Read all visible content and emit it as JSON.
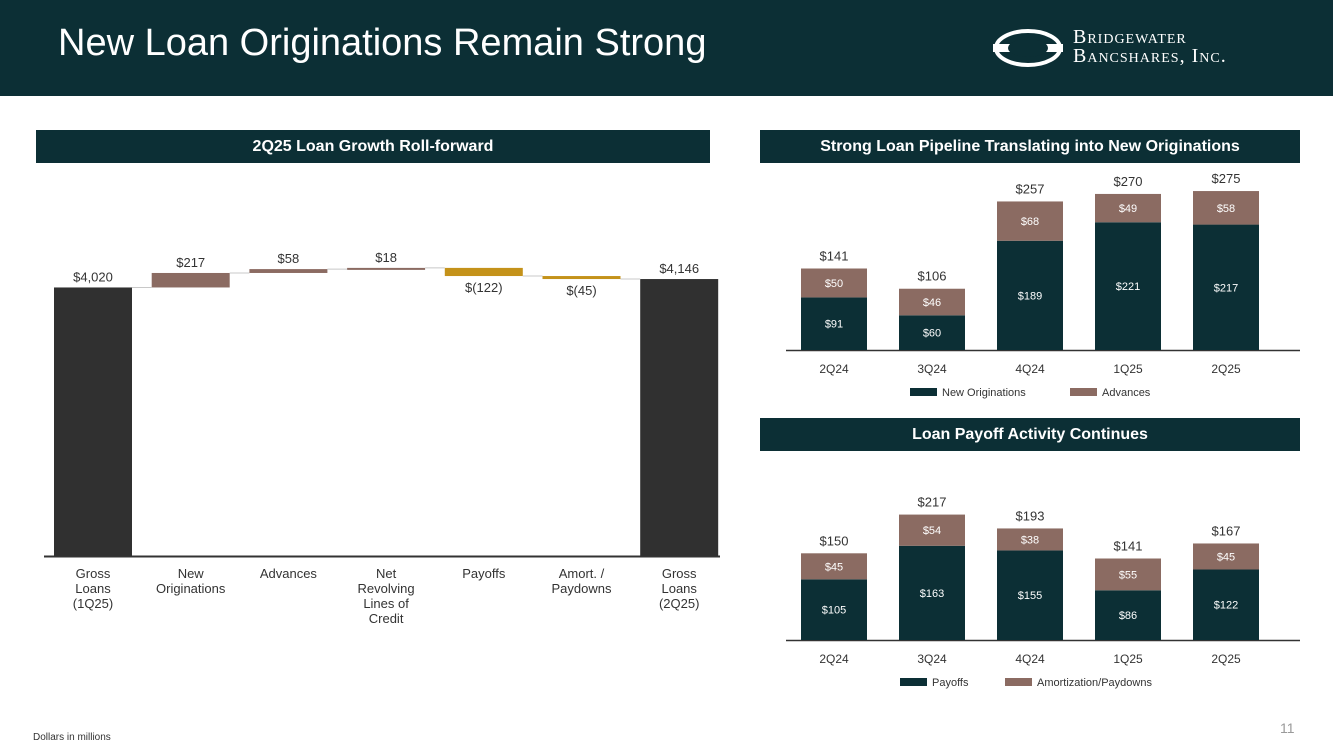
{
  "header": {
    "title": "New Loan Originations Remain Strong",
    "company_line1": "Bridgewater",
    "company_line2": "Bancshares, Inc."
  },
  "footer": {
    "note": "Dollars in millions",
    "page_number": "11"
  },
  "colors": {
    "header_bg": "#0c2f35",
    "dark_bar": "#303030",
    "increase": "#8b6b62",
    "decrease": "#c4921a",
    "series_dark": "#0c2f35",
    "series_light": "#8b6b62"
  },
  "chart_data": [
    {
      "type": "bar",
      "subtype": "waterfall",
      "title": "2Q25 Loan Growth Roll-forward",
      "categories": [
        [
          "Gross",
          "Loans",
          "(1Q25)"
        ],
        [
          "New",
          "Originations"
        ],
        [
          "Advances"
        ],
        [
          "Net",
          "Revolving",
          "Lines of",
          "Credit"
        ],
        [
          "Payoffs"
        ],
        [
          "Amort. /",
          "Paydowns"
        ],
        [
          "Gross",
          "Loans",
          "(2Q25)"
        ]
      ],
      "values": [
        4020,
        217,
        58,
        18,
        -122,
        -45,
        4146
      ],
      "kinds": [
        "total",
        "increase",
        "increase",
        "increase",
        "decrease",
        "decrease",
        "total"
      ],
      "labels": [
        "$4,020",
        "$217",
        "$58",
        "$18",
        "$(122)",
        "$(45)",
        "$4,146"
      ]
    },
    {
      "type": "bar",
      "subtype": "stacked",
      "title": "Strong Loan Pipeline Translating into New Originations",
      "categories": [
        "2Q24",
        "3Q24",
        "4Q24",
        "1Q25",
        "2Q25"
      ],
      "series": [
        {
          "name": "New Originations",
          "values": [
            91,
            60,
            189,
            221,
            217
          ],
          "labels": [
            "$91",
            "$60",
            "$189",
            "$221",
            "$217"
          ]
        },
        {
          "name": "Advances",
          "values": [
            50,
            46,
            68,
            49,
            58
          ],
          "labels": [
            "$50",
            "$46",
            "$68",
            "$49",
            "$58"
          ]
        }
      ],
      "totals": [
        "$141",
        "$106",
        "$257",
        "$270",
        "$275"
      ],
      "legend": "bottom"
    },
    {
      "type": "bar",
      "subtype": "stacked",
      "title": "Loan Payoff Activity Continues",
      "categories": [
        "2Q24",
        "3Q24",
        "4Q24",
        "1Q25",
        "2Q25"
      ],
      "series": [
        {
          "name": "Payoffs",
          "values": [
            105,
            163,
            155,
            86,
            122
          ],
          "labels": [
            "$105",
            "$163",
            "$155",
            "$86",
            "$122"
          ]
        },
        {
          "name": "Amortization/Paydowns",
          "values": [
            45,
            54,
            38,
            55,
            45
          ],
          "labels": [
            "$45",
            "$54",
            "$38",
            "$55",
            "$45"
          ]
        }
      ],
      "totals": [
        "$150",
        "$217",
        "$193",
        "$141",
        "$167"
      ],
      "legend": "bottom"
    }
  ]
}
